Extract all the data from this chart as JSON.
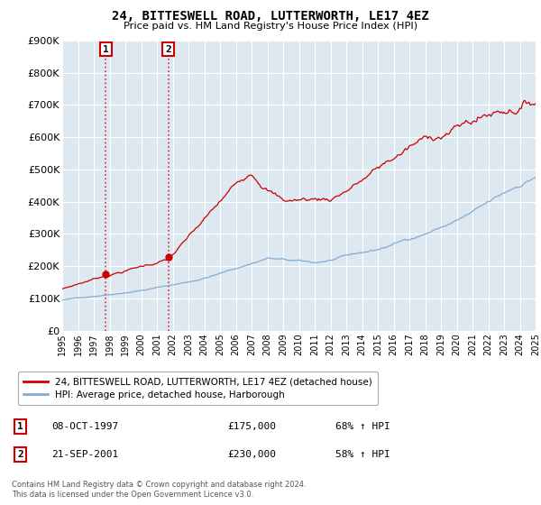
{
  "title": "24, BITTESWELL ROAD, LUTTERWORTH, LE17 4EZ",
  "subtitle": "Price paid vs. HM Land Registry's House Price Index (HPI)",
  "legend_label_red": "24, BITTESWELL ROAD, LUTTERWORTH, LE17 4EZ (detached house)",
  "legend_label_blue": "HPI: Average price, detached house, Harborough",
  "table_rows": [
    {
      "num": "1",
      "date": "08-OCT-1997",
      "price": "£175,000",
      "change": "68% ↑ HPI"
    },
    {
      "num": "2",
      "date": "21-SEP-2001",
      "price": "£230,000",
      "change": "58% ↑ HPI"
    }
  ],
  "footer": "Contains HM Land Registry data © Crown copyright and database right 2024.\nThis data is licensed under the Open Government Licence v3.0.",
  "ylim": [
    0,
    900000
  ],
  "yticks": [
    0,
    100000,
    200000,
    300000,
    400000,
    500000,
    600000,
    700000,
    800000,
    900000
  ],
  "ytick_labels": [
    "£0",
    "£100K",
    "£200K",
    "£300K",
    "£400K",
    "£500K",
    "£600K",
    "£700K",
    "£800K",
    "£900K"
  ],
  "xtick_years": [
    1995,
    1996,
    1997,
    1998,
    1999,
    2000,
    2001,
    2002,
    2003,
    2004,
    2005,
    2006,
    2007,
    2008,
    2009,
    2010,
    2011,
    2012,
    2013,
    2014,
    2015,
    2016,
    2017,
    2018,
    2019,
    2020,
    2021,
    2022,
    2023,
    2024,
    2025
  ],
  "bg_color": "#dde8f0",
  "grid_color": "#ffffff",
  "fig_color": "#ffffff",
  "red_color": "#cc0000",
  "blue_color": "#88aacc",
  "sale1_x": 1997.77,
  "sale1_y": 175000,
  "sale2_x": 2001.72,
  "sale2_y": 230000,
  "annotation_label1": "1",
  "annotation_label2": "2"
}
